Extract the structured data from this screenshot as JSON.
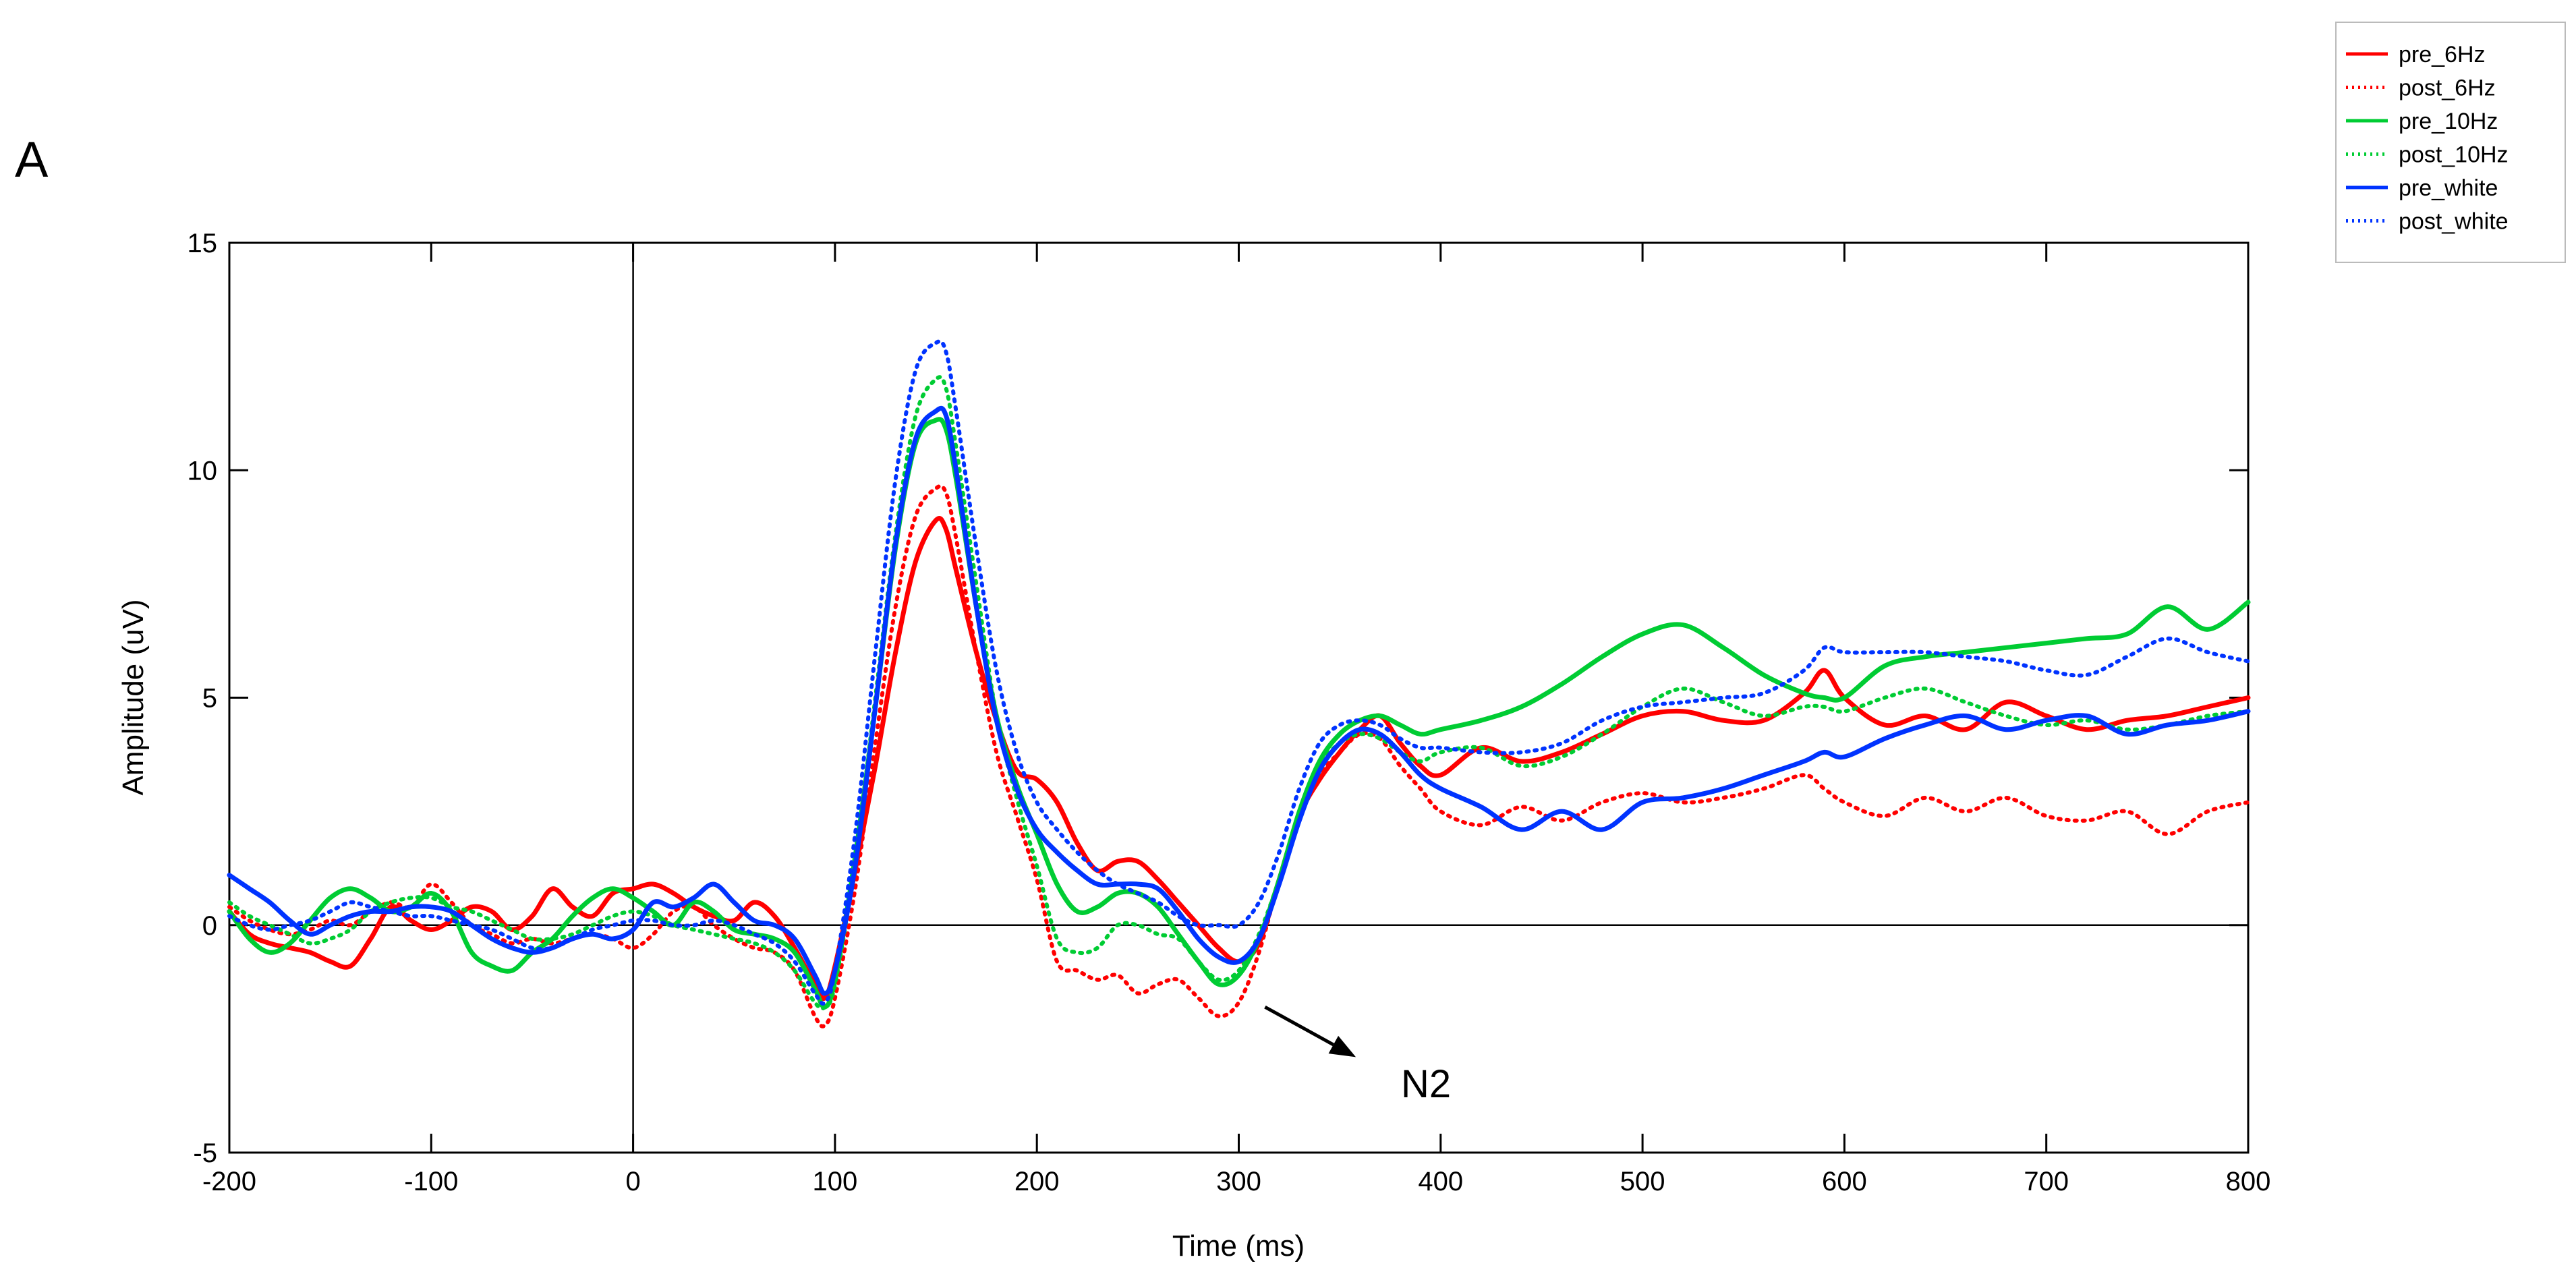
{
  "panel_label": "A",
  "chart_data": {
    "type": "line",
    "title": "",
    "xlabel": "Time (ms)",
    "ylabel": "Amplitude (uV)",
    "xlim": [
      -200,
      800
    ],
    "ylim": [
      -5,
      15
    ],
    "xticks": [
      -200,
      -100,
      0,
      100,
      200,
      300,
      400,
      500,
      600,
      700,
      800
    ],
    "yticks": [
      -5,
      0,
      5,
      10,
      15
    ],
    "xtick_labels": [
      "-200",
      "-100",
      "0",
      "100",
      "200",
      "300",
      "400",
      "500",
      "600",
      "700",
      "800"
    ],
    "ytick_labels": [
      "-5",
      "0",
      "5",
      "10",
      "15"
    ],
    "grid": false,
    "legend_position": "top-right (outside)",
    "reference_lines": {
      "zero_x": 0,
      "zero_y": 0
    },
    "annotation": {
      "text": "N2",
      "arrow_from": [
        313,
        -1.8
      ],
      "arrow_to": [
        358,
        -2.9
      ]
    },
    "series": [
      {
        "name": "pre_6Hz",
        "color": "#ff0000",
        "style": "solid",
        "x": [
          -200,
          -190,
          -180,
          -170,
          -160,
          -150,
          -140,
          -130,
          -120,
          -110,
          -100,
          -90,
          -80,
          -70,
          -60,
          -50,
          -40,
          -30,
          -20,
          -10,
          0,
          10,
          20,
          30,
          40,
          50,
          60,
          70,
          80,
          90,
          95,
          100,
          110,
          120,
          130,
          140,
          150,
          155,
          160,
          170,
          180,
          190,
          200,
          210,
          220,
          230,
          240,
          250,
          260,
          270,
          280,
          290,
          300,
          310,
          320,
          330,
          340,
          350,
          360,
          370,
          380,
          390,
          400,
          420,
          440,
          460,
          480,
          500,
          520,
          540,
          560,
          580,
          590,
          600,
          620,
          640,
          660,
          680,
          700,
          720,
          740,
          760,
          780,
          800
        ],
        "y": [
          0.3,
          -0.2,
          -0.4,
          -0.5,
          -0.6,
          -0.8,
          -0.9,
          -0.3,
          0.4,
          0.1,
          -0.1,
          0.1,
          0.4,
          0.3,
          -0.1,
          0.2,
          0.8,
          0.4,
          0.2,
          0.7,
          0.8,
          0.9,
          0.7,
          0.4,
          0.2,
          0.1,
          0.5,
          0.2,
          -0.5,
          -1.3,
          -1.6,
          -0.9,
          1.2,
          3.5,
          6.0,
          8.0,
          8.9,
          8.7,
          7.8,
          6.0,
          4.5,
          3.4,
          3.2,
          2.7,
          1.8,
          1.2,
          1.4,
          1.4,
          1.0,
          0.5,
          0.0,
          -0.5,
          -0.8,
          -0.4,
          1.0,
          2.4,
          3.2,
          3.8,
          4.3,
          4.6,
          4.0,
          3.5,
          3.3,
          3.9,
          3.6,
          3.8,
          4.2,
          4.6,
          4.7,
          4.5,
          4.5,
          5.1,
          5.6,
          5.0,
          4.4,
          4.6,
          4.3,
          4.9,
          4.6,
          4.3,
          4.5,
          4.6,
          4.8,
          5.0
        ]
      },
      {
        "name": "post_6Hz",
        "color": "#ff0000",
        "style": "dotted",
        "x": [
          -200,
          -190,
          -180,
          -170,
          -160,
          -150,
          -140,
          -130,
          -120,
          -110,
          -100,
          -90,
          -80,
          -70,
          -60,
          -50,
          -40,
          -30,
          -20,
          -10,
          0,
          10,
          20,
          30,
          40,
          50,
          60,
          70,
          80,
          90,
          95,
          100,
          110,
          120,
          130,
          140,
          150,
          155,
          160,
          170,
          180,
          190,
          200,
          210,
          220,
          230,
          240,
          250,
          260,
          270,
          280,
          290,
          300,
          310,
          320,
          330,
          340,
          350,
          360,
          370,
          380,
          390,
          400,
          420,
          440,
          460,
          480,
          500,
          520,
          540,
          560,
          580,
          590,
          600,
          620,
          640,
          660,
          680,
          700,
          720,
          740,
          760,
          780,
          800
        ],
        "y": [
          0.4,
          0.1,
          -0.1,
          -0.2,
          -0.1,
          0.1,
          0.0,
          0.3,
          0.5,
          0.4,
          0.9,
          0.5,
          0.0,
          -0.2,
          -0.4,
          -0.3,
          -0.4,
          -0.3,
          -0.2,
          -0.3,
          -0.5,
          -0.2,
          0.3,
          0.4,
          0.0,
          -0.3,
          -0.5,
          -0.6,
          -1.0,
          -2.0,
          -2.2,
          -1.6,
          0.8,
          4.0,
          7.0,
          9.0,
          9.6,
          9.5,
          8.5,
          6.0,
          3.8,
          2.4,
          1.0,
          -0.8,
          -1.0,
          -1.2,
          -1.1,
          -1.5,
          -1.3,
          -1.2,
          -1.6,
          -2.0,
          -1.7,
          -0.6,
          1.0,
          2.4,
          3.3,
          3.8,
          4.2,
          4.1,
          3.5,
          3.0,
          2.5,
          2.2,
          2.6,
          2.3,
          2.7,
          2.9,
          2.7,
          2.8,
          3.0,
          3.3,
          3.0,
          2.7,
          2.4,
          2.8,
          2.5,
          2.8,
          2.4,
          2.3,
          2.5,
          2.0,
          2.5,
          2.7
        ]
      },
      {
        "name": "pre_10Hz",
        "color": "#00cc33",
        "style": "solid",
        "x": [
          -200,
          -190,
          -180,
          -170,
          -160,
          -150,
          -140,
          -130,
          -120,
          -110,
          -100,
          -90,
          -80,
          -70,
          -60,
          -50,
          -40,
          -30,
          -20,
          -10,
          0,
          10,
          20,
          30,
          40,
          50,
          60,
          70,
          80,
          90,
          95,
          100,
          110,
          120,
          130,
          140,
          150,
          155,
          160,
          170,
          180,
          190,
          200,
          210,
          220,
          230,
          240,
          250,
          260,
          270,
          280,
          290,
          300,
          310,
          320,
          330,
          340,
          350,
          360,
          370,
          380,
          390,
          400,
          420,
          440,
          460,
          480,
          500,
          520,
          540,
          560,
          580,
          590,
          600,
          620,
          640,
          660,
          680,
          700,
          720,
          740,
          760,
          780,
          800
        ],
        "y": [
          0.3,
          -0.3,
          -0.6,
          -0.4,
          0.1,
          0.6,
          0.8,
          0.6,
          0.3,
          0.4,
          0.7,
          0.3,
          -0.6,
          -0.9,
          -1.0,
          -0.6,
          -0.3,
          0.2,
          0.6,
          0.8,
          0.6,
          0.3,
          0.0,
          0.5,
          0.3,
          -0.1,
          -0.2,
          -0.3,
          -0.6,
          -1.4,
          -1.8,
          -1.2,
          1.5,
          4.8,
          8.3,
          10.6,
          11.1,
          10.9,
          9.8,
          7.0,
          4.6,
          3.1,
          2.0,
          0.9,
          0.3,
          0.4,
          0.7,
          0.7,
          0.4,
          -0.2,
          -0.8,
          -1.3,
          -1.1,
          -0.3,
          1.0,
          2.5,
          3.6,
          4.2,
          4.5,
          4.6,
          4.4,
          4.2,
          4.3,
          4.5,
          4.8,
          5.3,
          5.9,
          6.4,
          6.6,
          6.1,
          5.5,
          5.1,
          5.0,
          5.0,
          5.7,
          5.9,
          6.0,
          6.1,
          6.2,
          6.3,
          6.4,
          7.0,
          6.5,
          7.1
        ]
      },
      {
        "name": "post_10Hz",
        "color": "#00cc33",
        "style": "dotted",
        "x": [
          -200,
          -190,
          -180,
          -170,
          -160,
          -150,
          -140,
          -130,
          -120,
          -110,
          -100,
          -90,
          -80,
          -70,
          -60,
          -50,
          -40,
          -30,
          -20,
          -10,
          0,
          10,
          20,
          30,
          40,
          50,
          60,
          70,
          80,
          90,
          95,
          100,
          110,
          120,
          130,
          140,
          150,
          155,
          160,
          170,
          180,
          190,
          200,
          210,
          220,
          230,
          240,
          250,
          260,
          270,
          280,
          290,
          300,
          310,
          320,
          330,
          340,
          350,
          360,
          370,
          380,
          390,
          400,
          420,
          440,
          460,
          480,
          500,
          520,
          540,
          560,
          580,
          590,
          600,
          620,
          640,
          660,
          680,
          700,
          720,
          740,
          760,
          780,
          800
        ],
        "y": [
          0.5,
          0.2,
          0.0,
          -0.2,
          -0.4,
          -0.3,
          -0.1,
          0.3,
          0.5,
          0.6,
          0.6,
          0.4,
          0.3,
          0.1,
          -0.1,
          -0.3,
          -0.3,
          -0.2,
          0.0,
          0.2,
          0.3,
          0.2,
          0.0,
          -0.1,
          -0.2,
          -0.3,
          -0.4,
          -0.6,
          -1.0,
          -1.7,
          -1.8,
          -1.3,
          1.4,
          5.0,
          8.6,
          11.2,
          12.0,
          11.8,
          10.5,
          7.5,
          4.6,
          2.8,
          1.3,
          -0.3,
          -0.6,
          -0.5,
          0.0,
          0.0,
          -0.2,
          -0.3,
          -0.8,
          -1.2,
          -1.0,
          -0.2,
          1.0,
          2.4,
          3.5,
          4.0,
          4.2,
          4.1,
          3.8,
          3.6,
          3.8,
          3.9,
          3.5,
          3.7,
          4.2,
          4.8,
          5.2,
          4.9,
          4.6,
          4.8,
          4.8,
          4.7,
          5.0,
          5.2,
          4.9,
          4.6,
          4.4,
          4.5,
          4.3,
          4.4,
          4.6,
          4.7
        ]
      },
      {
        "name": "pre_white",
        "color": "#0033ff",
        "style": "solid",
        "x": [
          -200,
          -190,
          -180,
          -170,
          -160,
          -150,
          -140,
          -130,
          -120,
          -110,
          -100,
          -90,
          -80,
          -70,
          -60,
          -50,
          -40,
          -30,
          -20,
          -10,
          0,
          10,
          20,
          30,
          40,
          50,
          60,
          70,
          80,
          90,
          95,
          100,
          110,
          120,
          130,
          140,
          150,
          155,
          160,
          170,
          180,
          190,
          200,
          210,
          220,
          230,
          240,
          250,
          260,
          270,
          280,
          290,
          300,
          310,
          320,
          330,
          340,
          350,
          360,
          370,
          380,
          390,
          400,
          420,
          440,
          460,
          480,
          500,
          520,
          540,
          560,
          580,
          590,
          600,
          620,
          640,
          660,
          680,
          700,
          720,
          740,
          760,
          780,
          800
        ],
        "y": [
          1.1,
          0.8,
          0.5,
          0.1,
          -0.2,
          0.0,
          0.2,
          0.3,
          0.3,
          0.4,
          0.4,
          0.3,
          0.0,
          -0.3,
          -0.5,
          -0.6,
          -0.5,
          -0.3,
          -0.2,
          -0.3,
          -0.1,
          0.5,
          0.4,
          0.6,
          0.9,
          0.5,
          0.1,
          0.0,
          -0.3,
          -1.1,
          -1.5,
          -1.0,
          1.3,
          4.8,
          8.4,
          10.7,
          11.3,
          11.2,
          10.0,
          7.0,
          4.5,
          3.0,
          2.1,
          1.6,
          1.2,
          0.9,
          0.9,
          0.9,
          0.8,
          0.3,
          -0.3,
          -0.7,
          -0.8,
          -0.3,
          0.9,
          2.3,
          3.4,
          4.0,
          4.3,
          4.2,
          3.8,
          3.3,
          3.0,
          2.6,
          2.1,
          2.5,
          2.1,
          2.7,
          2.8,
          3.0,
          3.3,
          3.6,
          3.8,
          3.7,
          4.1,
          4.4,
          4.6,
          4.3,
          4.5,
          4.6,
          4.2,
          4.4,
          4.5,
          4.7
        ]
      },
      {
        "name": "post_white",
        "color": "#0033ff",
        "style": "dotted",
        "x": [
          -200,
          -190,
          -180,
          -170,
          -160,
          -150,
          -140,
          -130,
          -120,
          -110,
          -100,
          -90,
          -80,
          -70,
          -60,
          -50,
          -40,
          -30,
          -20,
          -10,
          0,
          10,
          20,
          30,
          40,
          50,
          60,
          70,
          80,
          90,
          95,
          100,
          110,
          120,
          130,
          140,
          150,
          155,
          160,
          170,
          180,
          190,
          200,
          210,
          220,
          230,
          240,
          250,
          260,
          270,
          280,
          290,
          300,
          310,
          320,
          330,
          340,
          350,
          360,
          370,
          380,
          390,
          400,
          420,
          440,
          460,
          480,
          500,
          520,
          540,
          560,
          580,
          590,
          600,
          620,
          640,
          660,
          680,
          700,
          720,
          740,
          760,
          780,
          800
        ],
        "y": [
          0.2,
          0.0,
          -0.1,
          0.0,
          0.1,
          0.3,
          0.5,
          0.4,
          0.3,
          0.2,
          0.2,
          0.1,
          0.0,
          -0.1,
          -0.3,
          -0.5,
          -0.5,
          -0.3,
          -0.1,
          0.0,
          0.1,
          0.1,
          0.0,
          0.0,
          0.1,
          0.0,
          -0.2,
          -0.4,
          -0.8,
          -1.5,
          -1.7,
          -1.0,
          2.0,
          6.0,
          9.8,
          12.2,
          12.8,
          12.6,
          11.3,
          8.3,
          5.6,
          3.8,
          2.7,
          2.1,
          1.6,
          1.2,
          0.9,
          0.7,
          0.5,
          0.2,
          0.0,
          0.0,
          0.0,
          0.5,
          1.6,
          3.0,
          4.0,
          4.4,
          4.5,
          4.4,
          4.1,
          3.9,
          3.9,
          3.8,
          3.8,
          4.0,
          4.5,
          4.8,
          4.9,
          5.0,
          5.1,
          5.6,
          6.1,
          6.0,
          6.0,
          6.0,
          5.9,
          5.8,
          5.6,
          5.5,
          5.9,
          6.3,
          6.0,
          5.8
        ]
      }
    ]
  }
}
